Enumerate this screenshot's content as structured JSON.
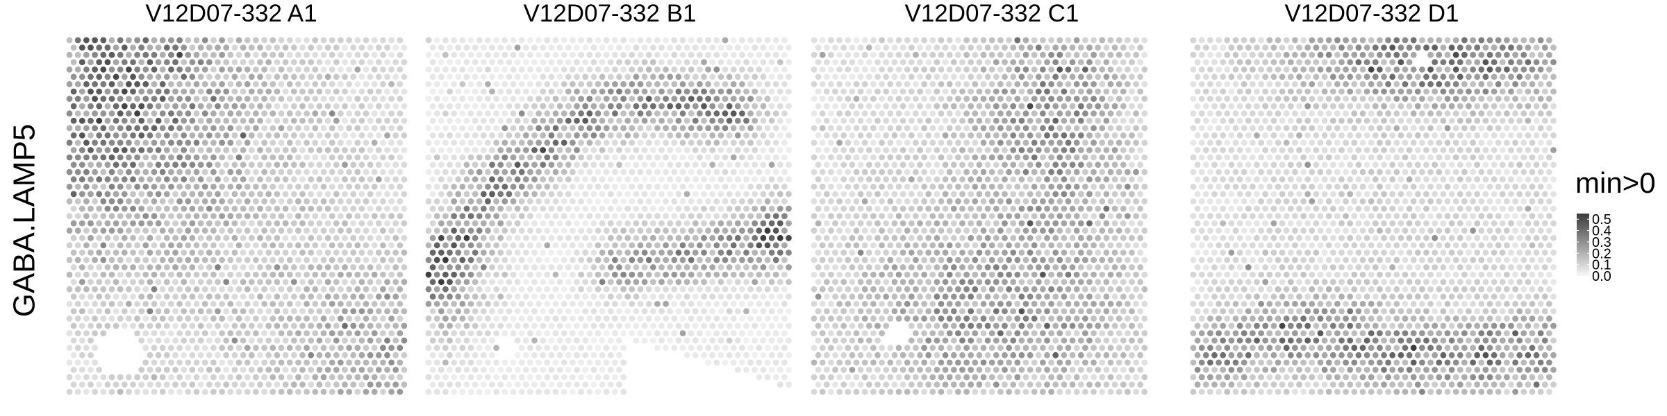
{
  "chart_data": {
    "type": "heatmap",
    "feature_label": "GABA.LAMP5",
    "panels": [
      {
        "title": "V12D07-332  A1"
      },
      {
        "title": "V12D07-332  B1"
      },
      {
        "title": "V12D07-332  C1"
      },
      {
        "title": "V12D07-332  D1"
      }
    ],
    "legend": {
      "title": "min>0",
      "placement": "right",
      "range": [
        0,
        0.55
      ],
      "ticks": [
        "0.0",
        "0.1",
        "0.2",
        "0.3",
        "0.4",
        "0.5"
      ],
      "tick_values": [
        0,
        0.1,
        0.2,
        0.3,
        0.4,
        0.5
      ],
      "color_low": "#f7f7f7",
      "color_high": "#3a3a3a"
    }
  }
}
